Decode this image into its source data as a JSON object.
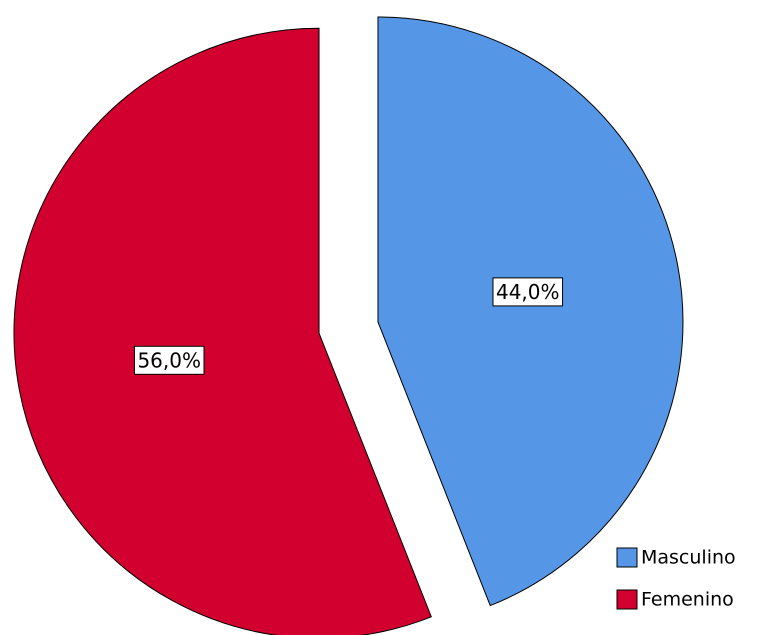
{
  "chart_data": {
    "type": "pie",
    "categories": [
      "Masculino",
      "Femenino"
    ],
    "values": [
      44,
      56
    ],
    "value_labels": [
      "44,0%",
      "56,0%"
    ],
    "colors": [
      "#5596e6",
      "#d1002f"
    ],
    "exploded": true,
    "legend": "bottom-right"
  }
}
